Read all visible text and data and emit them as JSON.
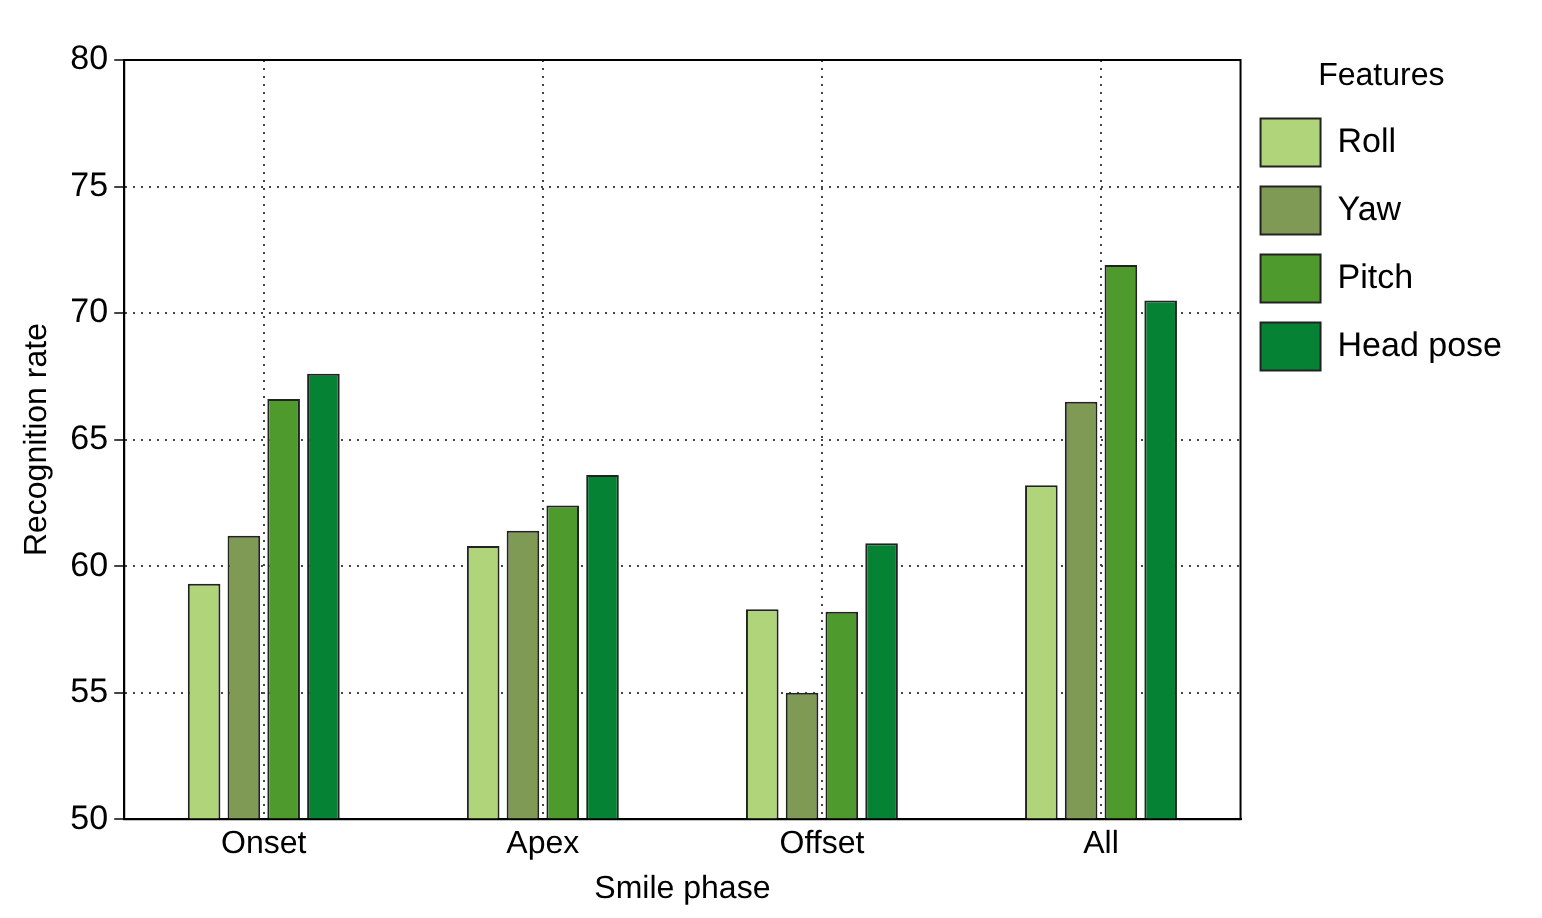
{
  "chart_data": {
    "type": "bar",
    "xlabel": "Smile phase",
    "ylabel": "Recognition rate",
    "legend_title": "Features",
    "categories": [
      "Onset",
      "Apex",
      "Offset",
      "All"
    ],
    "series": [
      {
        "name": "Roll",
        "color": "#b0d47a",
        "values": [
          59.3,
          60.8,
          58.3,
          63.2
        ]
      },
      {
        "name": "Yaw",
        "color": "#7f9a55",
        "values": [
          61.2,
          61.4,
          55.0,
          66.5
        ]
      },
      {
        "name": "Pitch",
        "color": "#4f9a2c",
        "values": [
          66.6,
          62.4,
          58.2,
          71.9
        ]
      },
      {
        "name": "Head pose",
        "color": "#068234",
        "values": [
          67.6,
          63.6,
          60.9,
          70.5
        ]
      }
    ],
    "ylim": [
      50,
      80
    ],
    "yticks": [
      50,
      55,
      60,
      65,
      70,
      75,
      80
    ],
    "grid": true,
    "legend": "top right"
  }
}
